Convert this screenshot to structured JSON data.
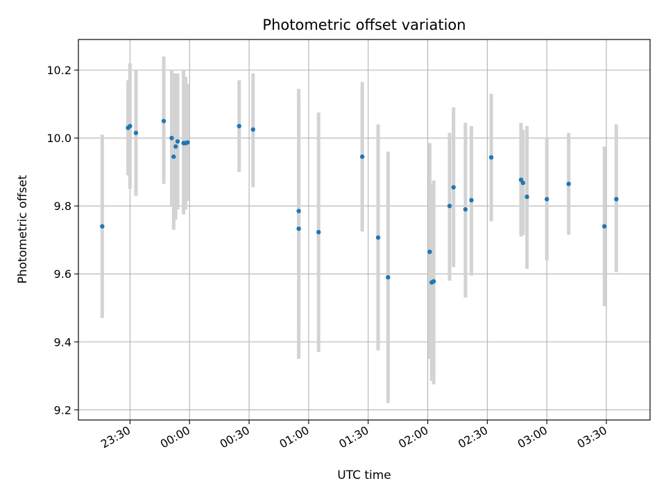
{
  "chart_data": {
    "type": "scatter",
    "title": "Photometric offset variation",
    "xlabel": "UTC time",
    "ylabel": "Photometric offset",
    "x_axis": {
      "kind": "time",
      "range": [
        "23:04",
        "03:52"
      ],
      "ticks": [
        "23:30",
        "00:00",
        "00:30",
        "01:00",
        "01:30",
        "02:00",
        "02:30",
        "03:00",
        "03:30"
      ],
      "tick_label_rotation": "30deg"
    },
    "y_axis": {
      "range": [
        9.17,
        10.29
      ],
      "ticks": [
        9.2,
        9.4,
        9.6,
        9.8,
        10.0,
        10.2
      ],
      "tick_labels": [
        "9.2",
        "9.4",
        "9.6",
        "9.8",
        "10.0",
        "10.2"
      ]
    },
    "grid": true,
    "error_bar_color": "#d3d3d3",
    "marker_color": "#1f77b4",
    "points": [
      {
        "t": "23:16",
        "y": 9.74,
        "lo": 9.47,
        "hi": 10.01
      },
      {
        "t": "23:29",
        "y": 10.03,
        "lo": 9.89,
        "hi": 10.17
      },
      {
        "t": "23:30",
        "y": 10.035,
        "lo": 9.85,
        "hi": 10.22
      },
      {
        "t": "23:33",
        "y": 10.015,
        "lo": 9.83,
        "hi": 10.2
      },
      {
        "t": "23:47",
        "y": 10.05,
        "lo": 9.865,
        "hi": 10.24
      },
      {
        "t": "23:51",
        "y": 10.0,
        "lo": 9.8,
        "hi": 10.2
      },
      {
        "t": "23:52",
        "y": 9.945,
        "lo": 9.73,
        "hi": 10.19
      },
      {
        "t": "23:53",
        "y": 9.975,
        "lo": 9.76,
        "hi": 10.19
      },
      {
        "t": "23:54",
        "y": 9.99,
        "lo": 9.79,
        "hi": 10.19
      },
      {
        "t": "23:57",
        "y": 9.985,
        "lo": 9.775,
        "hi": 10.2
      },
      {
        "t": "23:58",
        "y": 9.985,
        "lo": 9.79,
        "hi": 10.18
      },
      {
        "t": "23:59",
        "y": 9.987,
        "lo": 9.815,
        "hi": 10.16
      },
      {
        "t": "00:25",
        "y": 10.035,
        "lo": 9.9,
        "hi": 10.17
      },
      {
        "t": "00:32",
        "y": 10.025,
        "lo": 9.855,
        "hi": 10.19
      },
      {
        "t": "00:55",
        "y": 9.785,
        "lo": 9.43,
        "hi": 10.145
      },
      {
        "t": "00:55",
        "y": 9.733,
        "lo": 9.35,
        "hi": 10.11
      },
      {
        "t": "01:05",
        "y": 9.723,
        "lo": 9.37,
        "hi": 10.075
      },
      {
        "t": "01:27",
        "y": 9.945,
        "lo": 9.725,
        "hi": 10.165
      },
      {
        "t": "01:35",
        "y": 9.707,
        "lo": 9.375,
        "hi": 10.04
      },
      {
        "t": "01:40",
        "y": 9.59,
        "lo": 9.22,
        "hi": 9.96
      },
      {
        "t": "02:01",
        "y": 9.665,
        "lo": 9.35,
        "hi": 9.985
      },
      {
        "t": "02:02",
        "y": 9.575,
        "lo": 9.285,
        "hi": 9.865
      },
      {
        "t": "02:03",
        "y": 9.578,
        "lo": 9.275,
        "hi": 9.875
      },
      {
        "t": "02:11",
        "y": 9.8,
        "lo": 9.58,
        "hi": 10.015
      },
      {
        "t": "02:13",
        "y": 9.855,
        "lo": 9.62,
        "hi": 10.09
      },
      {
        "t": "02:19",
        "y": 9.79,
        "lo": 9.53,
        "hi": 10.045
      },
      {
        "t": "02:22",
        "y": 9.817,
        "lo": 9.595,
        "hi": 10.035
      },
      {
        "t": "02:32",
        "y": 9.943,
        "lo": 9.755,
        "hi": 10.13
      },
      {
        "t": "02:47",
        "y": 9.877,
        "lo": 9.71,
        "hi": 10.045
      },
      {
        "t": "02:48",
        "y": 9.868,
        "lo": 9.715,
        "hi": 10.025
      },
      {
        "t": "02:50",
        "y": 9.827,
        "lo": 9.615,
        "hi": 10.035
      },
      {
        "t": "03:00",
        "y": 9.82,
        "lo": 9.64,
        "hi": 10.0
      },
      {
        "t": "03:11",
        "y": 9.865,
        "lo": 9.715,
        "hi": 10.015
      },
      {
        "t": "03:29",
        "y": 9.74,
        "lo": 9.505,
        "hi": 9.975
      },
      {
        "t": "03:35",
        "y": 9.82,
        "lo": 9.605,
        "hi": 10.04
      }
    ]
  }
}
